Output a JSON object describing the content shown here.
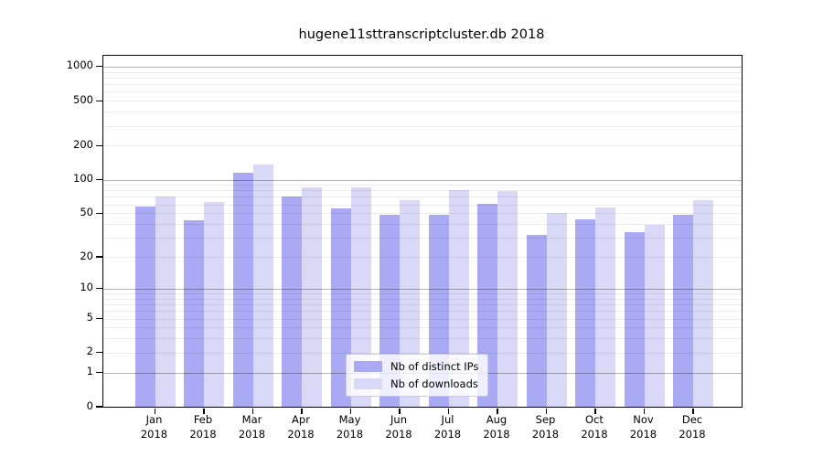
{
  "chart_data": {
    "type": "bar",
    "title": "hugene11sttranscriptcluster.db 2018",
    "categories": [
      "Jan",
      "Feb",
      "Mar",
      "Apr",
      "May",
      "Jun",
      "Jul",
      "Aug",
      "Sep",
      "Oct",
      "Nov",
      "Dec"
    ],
    "category_year": "2018",
    "series": [
      {
        "name": "Nb of distinct IPs",
        "color": "#a9a9f4",
        "values": [
          57,
          43,
          116,
          70,
          55,
          48,
          48,
          61,
          32,
          44,
          34,
          48
        ]
      },
      {
        "name": "Nb of downloads",
        "color": "#d9d9f7",
        "values": [
          70,
          63,
          136,
          86,
          85,
          65,
          80,
          79,
          50,
          56,
          39,
          65
        ]
      }
    ],
    "y_ticks": [
      0,
      1,
      2,
      5,
      10,
      20,
      50,
      100,
      200,
      500,
      1000
    ],
    "y_scale": "log10(1+x)",
    "ylim": [
      0,
      1000
    ],
    "xlabel": "",
    "ylabel": "",
    "grid": "horizontal, minor log gridlines on",
    "legend_position": "bottom-center-inside"
  }
}
